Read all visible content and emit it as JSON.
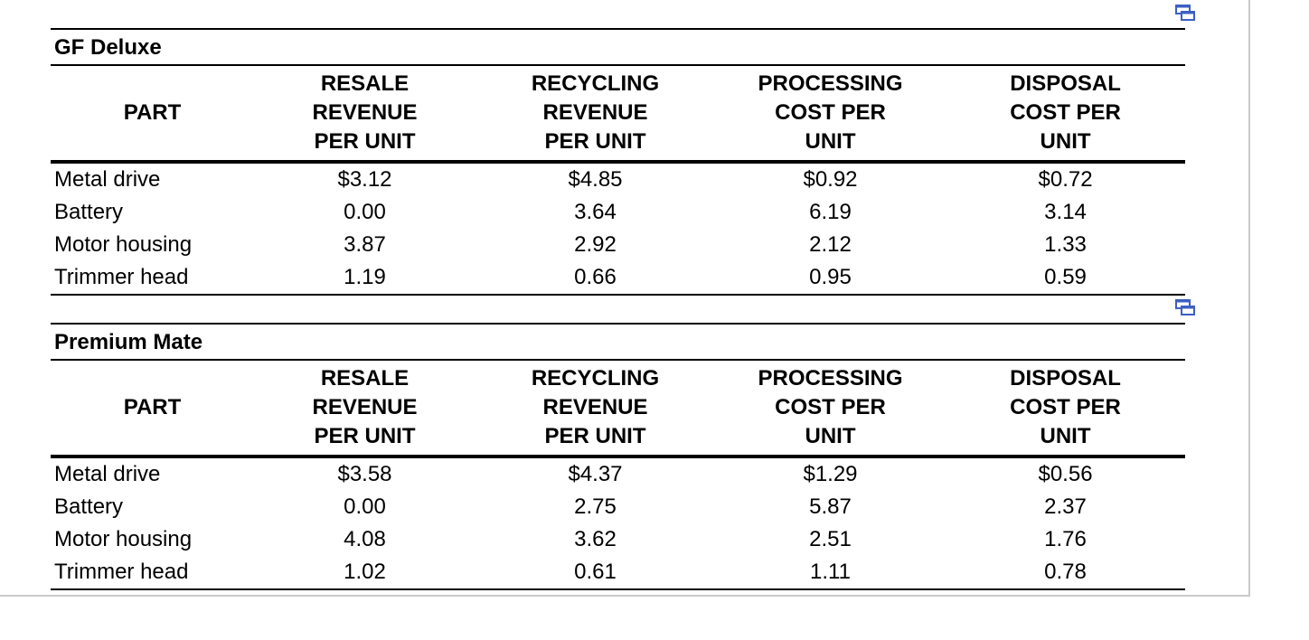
{
  "tables": [
    {
      "title": "GF Deluxe",
      "headers": {
        "part": "PART",
        "resale": [
          "RESALE",
          "REVENUE",
          "PER UNIT"
        ],
        "recycling": [
          "RECYCLING",
          "REVENUE",
          "PER UNIT"
        ],
        "processing": [
          "PROCESSING",
          "COST PER",
          "UNIT"
        ],
        "disposal": [
          "DISPOSAL",
          "COST PER",
          "UNIT"
        ]
      },
      "rows": [
        {
          "part": "Metal drive",
          "resale": "$3.12",
          "recycling": "$4.85",
          "processing": "$0.92",
          "disposal": "$0.72"
        },
        {
          "part": "Battery",
          "resale": "0.00",
          "recycling": "3.64",
          "processing": "6.19",
          "disposal": "3.14"
        },
        {
          "part": "Motor housing",
          "resale": "3.87",
          "recycling": "2.92",
          "processing": "2.12",
          "disposal": "1.33"
        },
        {
          "part": "Trimmer head",
          "resale": "1.19",
          "recycling": "0.66",
          "processing": "0.95",
          "disposal": "0.59"
        }
      ]
    },
    {
      "title": "Premium Mate",
      "headers": {
        "part": "PART",
        "resale": [
          "RESALE",
          "REVENUE",
          "PER UNIT"
        ],
        "recycling": [
          "RECYCLING",
          "REVENUE",
          "PER UNIT"
        ],
        "processing": [
          "PROCESSING",
          "COST PER",
          "UNIT"
        ],
        "disposal": [
          "DISPOSAL",
          "COST PER",
          "UNIT"
        ]
      },
      "rows": [
        {
          "part": "Metal drive",
          "resale": "$3.58",
          "recycling": "$4.37",
          "processing": "$1.29",
          "disposal": "$0.56"
        },
        {
          "part": "Battery",
          "resale": "0.00",
          "recycling": "2.75",
          "processing": "5.87",
          "disposal": "2.37"
        },
        {
          "part": "Motor housing",
          "resale": "4.08",
          "recycling": "3.62",
          "processing": "2.51",
          "disposal": "1.76"
        },
        {
          "part": "Trimmer head",
          "resale": "1.02",
          "recycling": "0.61",
          "processing": "1.11",
          "disposal": "0.78"
        }
      ]
    }
  ],
  "icons": {
    "copy": "copy-to-spreadsheet-icon",
    "color": "#3b5fc4"
  }
}
